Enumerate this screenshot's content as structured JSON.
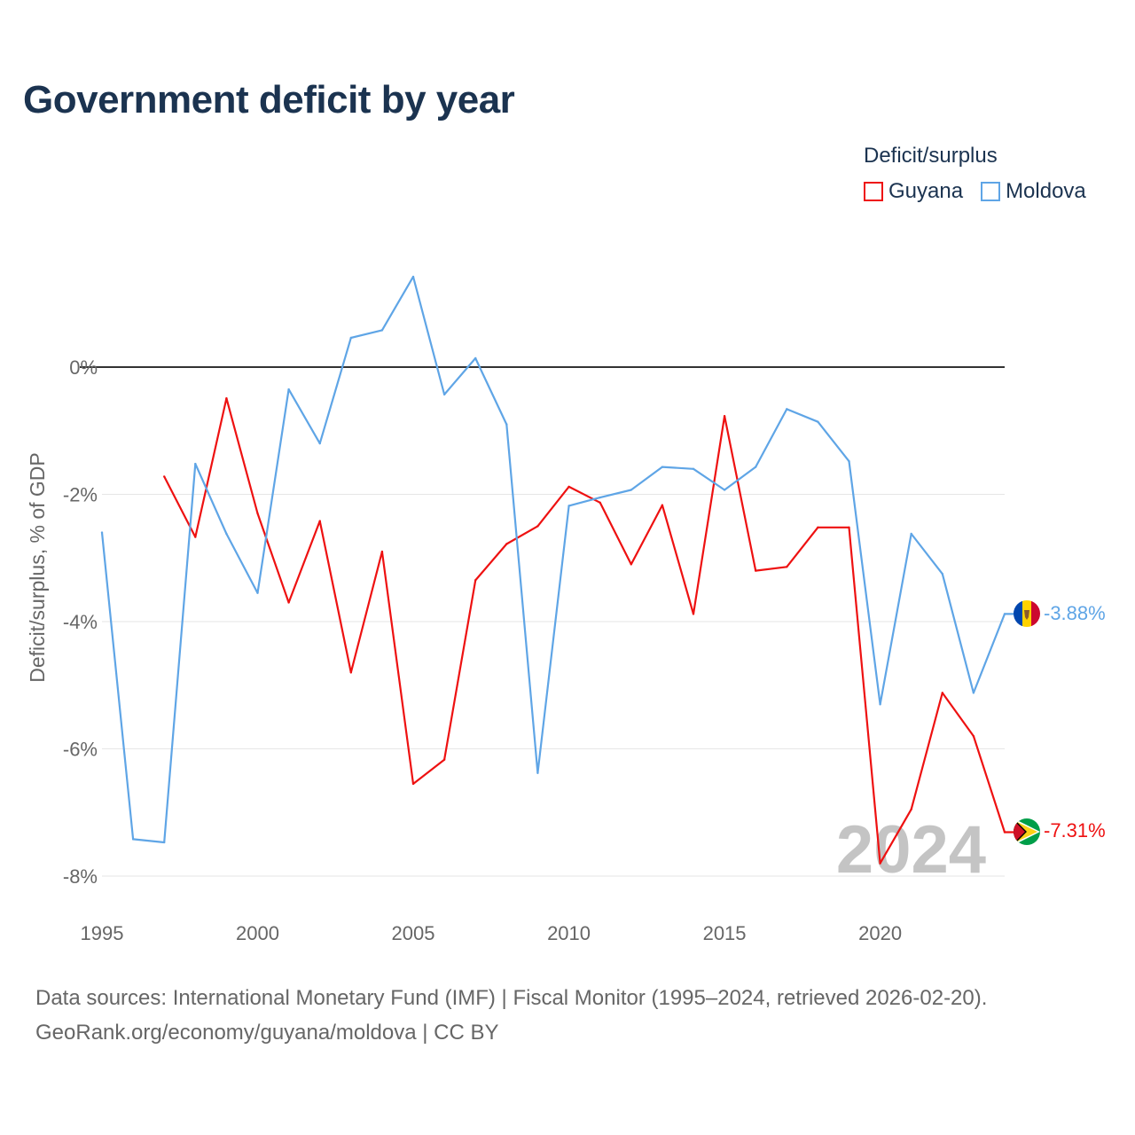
{
  "title": "Government deficit by year",
  "legend": {
    "title": "Deficit/surplus",
    "items": [
      {
        "name": "Guyana",
        "color": "#ee1111"
      },
      {
        "name": "Moldova",
        "color": "#5fa5e6"
      }
    ]
  },
  "chart_data": {
    "type": "line",
    "title": "Government deficit by year",
    "xlabel": "",
    "ylabel": "Deficit/surplus, % of GDP",
    "xlim": [
      1995,
      2024
    ],
    "ylim": [
      -8,
      1.5
    ],
    "x_ticks": [
      1995,
      2000,
      2005,
      2010,
      2015,
      2020
    ],
    "y_ticks": [
      0,
      -2,
      -4,
      -6,
      -8
    ],
    "y_tick_labels": [
      "0%",
      "-2%",
      "-4%",
      "-6%",
      "-8%"
    ],
    "x": [
      1995,
      1996,
      1997,
      1998,
      1999,
      2000,
      2001,
      2002,
      2003,
      2004,
      2005,
      2006,
      2007,
      2008,
      2009,
      2010,
      2011,
      2012,
      2013,
      2014,
      2015,
      2016,
      2017,
      2018,
      2019,
      2020,
      2021,
      2022,
      2023,
      2024
    ],
    "series": [
      {
        "name": "Guyana",
        "color": "#ee1111",
        "values": [
          null,
          null,
          -1.72,
          -2.67,
          -0.49,
          -2.3,
          -3.7,
          -2.42,
          -4.8,
          -2.9,
          -6.55,
          -6.17,
          -3.35,
          -2.78,
          -2.5,
          -1.88,
          -2.13,
          -3.1,
          -2.17,
          -3.88,
          -0.77,
          -3.2,
          -3.14,
          -2.52,
          -2.52,
          -7.8,
          -6.95,
          -5.12,
          -5.8,
          -7.31
        ]
      },
      {
        "name": "Moldova",
        "color": "#5fa5e6",
        "values": [
          -2.6,
          -7.42,
          -7.47,
          -1.52,
          -2.62,
          -3.55,
          -0.35,
          -1.2,
          0.46,
          0.58,
          1.42,
          -0.43,
          0.14,
          -0.9,
          -6.38,
          -2.18,
          -2.05,
          -1.93,
          -1.57,
          -1.6,
          -1.93,
          -1.57,
          -0.66,
          -0.86,
          -1.48,
          -5.3,
          -2.62,
          -3.25,
          -5.12,
          -3.88
        ]
      }
    ],
    "end_labels": [
      {
        "series": "Moldova",
        "text": "-3.88%"
      },
      {
        "series": "Guyana",
        "text": "-7.31%"
      }
    ],
    "year_watermark": "2024",
    "zero_line": true,
    "grid": true,
    "legend_position": "top-right"
  },
  "footer": {
    "line1": "Data sources: International Monetary Fund (IMF) | Fiscal Monitor (1995–2024, retrieved 2026-02-20).",
    "line2": "GeoRank.org/economy/guyana/moldova | CC BY"
  }
}
